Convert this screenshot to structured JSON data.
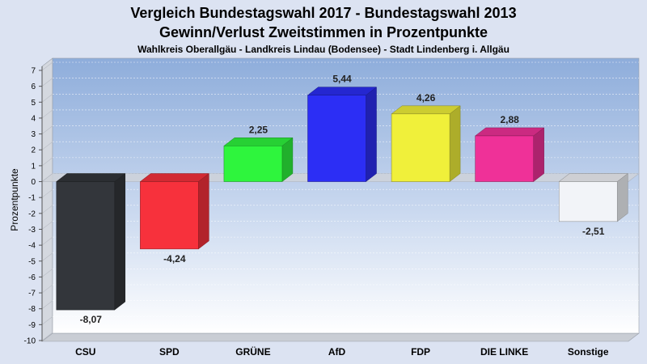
{
  "chart_data": {
    "type": "bar",
    "title": "Vergleich Bundestagswahl 2017 - Bundestagswahl 2013",
    "subtitle": "Gewinn/Verlust Zweitstimmen in Prozentpunkte",
    "subsubtitle": "Wahlkreis Oberallgäu - Landkreis Lindau (Bodensee) - Stadt Lindenberg i. Allgäu",
    "xlabel": "",
    "ylabel": "Prozentpunkte",
    "ylim": [
      -10,
      7
    ],
    "yticks": [
      "7",
      "6",
      "5",
      "4",
      "3",
      "2",
      "1",
      "0",
      "-1",
      "-2",
      "-3",
      "-4",
      "-5",
      "-6",
      "-7",
      "-8",
      "-9",
      "-10"
    ],
    "grid": true,
    "categories": [
      "CSU",
      "SPD",
      "GRÜNE",
      "AfD",
      "FDP",
      "DIE LINKE",
      "Sonstige"
    ],
    "values": [
      -8.07,
      -4.24,
      2.25,
      5.44,
      4.26,
      2.88,
      -2.51
    ],
    "value_labels": [
      "-8,07",
      "-4,24",
      "2,25",
      "5,44",
      "4,26",
      "2,88",
      "-2,51"
    ],
    "colors": [
      "#33363b",
      "#f7313c",
      "#2ef53d",
      "#2c2ef5",
      "#f0f03a",
      "#ef3198",
      "#f2f4f8"
    ]
  }
}
